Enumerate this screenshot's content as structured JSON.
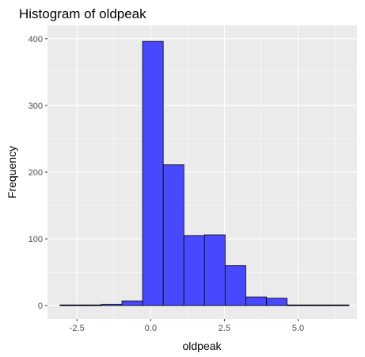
{
  "chart_data": {
    "type": "histogram",
    "title": "Histogram of oldpeak",
    "xlabel": "oldpeak",
    "ylabel": "Frequency",
    "xlim": [
      -3.5,
      7.0
    ],
    "ylim": [
      -20,
      420
    ],
    "x_ticks": [
      -2.5,
      0.0,
      2.5,
      5.0
    ],
    "x_tick_labels": [
      "-2.5",
      "0.0",
      "2.5",
      "5.0"
    ],
    "y_ticks": [
      0,
      100,
      200,
      300,
      400
    ],
    "y_tick_labels": [
      "0",
      "100",
      "200",
      "300",
      "400"
    ],
    "grid": true,
    "panel_background": "#ebebeb",
    "bar_fill": "#4848ff",
    "bar_outline": "#000000",
    "bins": [
      {
        "x0": -3.075,
        "x1": -2.375,
        "count": 1
      },
      {
        "x0": -2.375,
        "x1": -1.675,
        "count": 1
      },
      {
        "x0": -1.675,
        "x1": -0.975,
        "count": 2
      },
      {
        "x0": -0.975,
        "x1": -0.275,
        "count": 7
      },
      {
        "x0": -0.275,
        "x1": 0.425,
        "count": 396
      },
      {
        "x0": 0.425,
        "x1": 1.125,
        "count": 211
      },
      {
        "x0": 1.125,
        "x1": 1.825,
        "count": 105
      },
      {
        "x0": 1.825,
        "x1": 2.525,
        "count": 106
      },
      {
        "x0": 2.525,
        "x1": 3.225,
        "count": 60
      },
      {
        "x0": 3.225,
        "x1": 3.925,
        "count": 13
      },
      {
        "x0": 3.925,
        "x1": 4.625,
        "count": 11
      },
      {
        "x0": 4.625,
        "x1": 5.325,
        "count": 1
      },
      {
        "x0": 5.325,
        "x1": 6.025,
        "count": 1
      },
      {
        "x0": 6.025,
        "x1": 6.725,
        "count": 1
      }
    ]
  }
}
